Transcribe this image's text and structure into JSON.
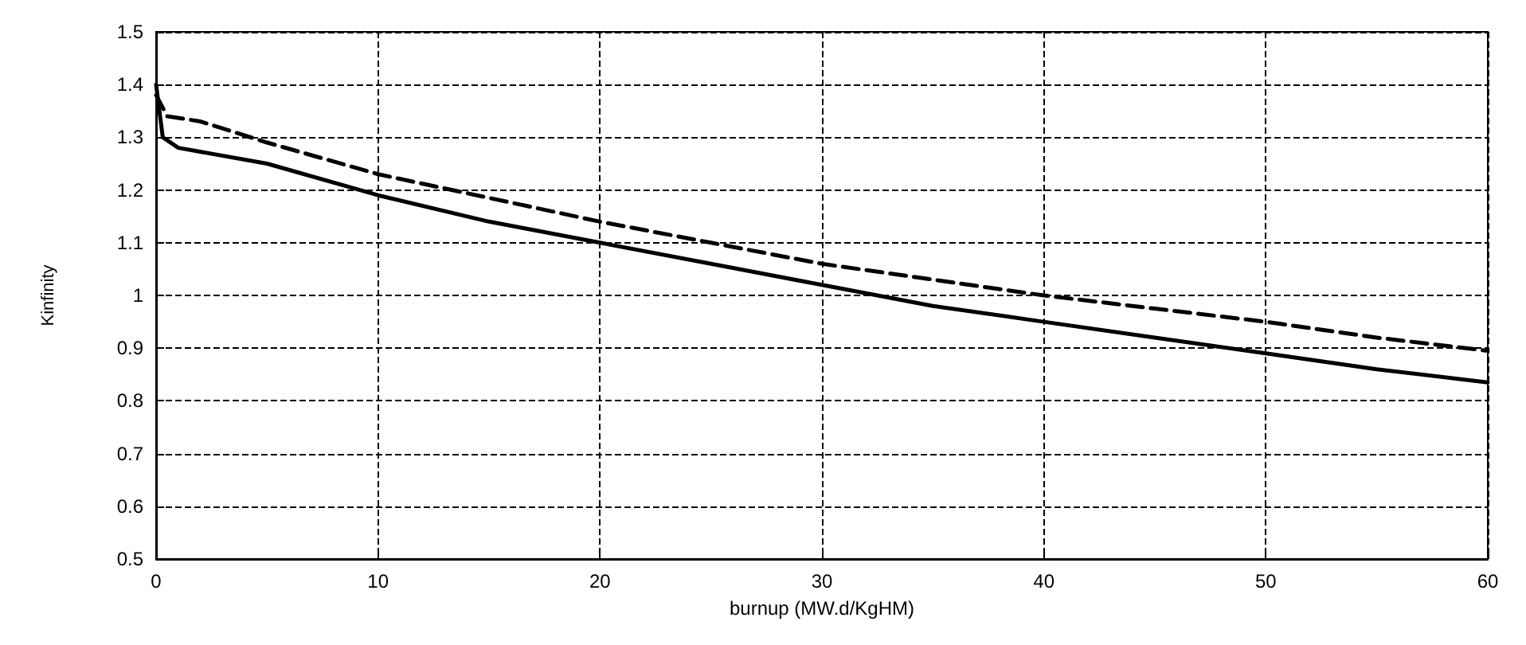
{
  "chart_data": {
    "type": "line",
    "xlabel": "burnup (MW.d/KgHM)",
    "ylabel": "Kinfinity",
    "xlim": [
      0,
      60
    ],
    "xticks": [
      0,
      10,
      20,
      30,
      40,
      50,
      60
    ],
    "ylim": [
      0.5,
      1.5
    ],
    "yticks": [
      0.5,
      0.6,
      0.7,
      0.8,
      0.9,
      1,
      1.1,
      1.2,
      1.3,
      1.4,
      1.5
    ],
    "grid": true,
    "marker": "none",
    "series": [
      {
        "color": "#000000",
        "line_style": "solid",
        "x": [
          0,
          0.3,
          1,
          5,
          10,
          15,
          20,
          25,
          30,
          35,
          40,
          45,
          50,
          55,
          60
        ],
        "values": [
          1.4,
          1.3,
          1.28,
          1.25,
          1.19,
          1.14,
          1.1,
          1.06,
          1.02,
          0.98,
          0.95,
          0.92,
          0.89,
          0.86,
          0.835
        ]
      },
      {
        "color": "#000000",
        "line_style": "dashed",
        "x": [
          0,
          0.5,
          2,
          5,
          10,
          15,
          20,
          25,
          30,
          35,
          40,
          45,
          50,
          55,
          60
        ],
        "values": [
          1.38,
          1.34,
          1.33,
          1.29,
          1.23,
          1.185,
          1.14,
          1.1,
          1.06,
          1.03,
          1,
          0.975,
          0.95,
          0.92,
          0.895
        ]
      }
    ]
  }
}
